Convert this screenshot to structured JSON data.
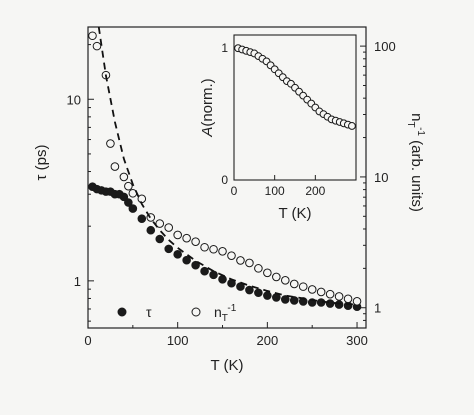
{
  "chart_data": {
    "type": "scatter",
    "xlabel": "T (K)",
    "ylabel_left": "τ (ps)",
    "ylabel_right": "n_T^-1 (arb. units)",
    "xlim": [
      0,
      310
    ],
    "ylim_left": [
      0.55,
      25
    ],
    "ylim_right": [
      0.7,
      140
    ],
    "yscale_left": "log",
    "yscale_right": "log",
    "x_ticks": [
      "0",
      "100",
      "200",
      "300"
    ],
    "x_tick_values": [
      0,
      100,
      200,
      300
    ],
    "y_left_ticks": [
      "1",
      "10"
    ],
    "y_left_tick_values": [
      1,
      10
    ],
    "y_right_ticks": [
      "1",
      "10",
      "100"
    ],
    "y_right_tick_values": [
      1,
      10,
      100
    ],
    "series": [
      {
        "name": "τ",
        "marker": "filled-circle",
        "axis": "left",
        "x": [
          5,
          10,
          15,
          20,
          25,
          30,
          35,
          40,
          45,
          50,
          60,
          70,
          80,
          90,
          100,
          110,
          120,
          130,
          140,
          150,
          160,
          170,
          180,
          190,
          200,
          210,
          220,
          230,
          240,
          250,
          260,
          270,
          280,
          290,
          300
        ],
        "y": [
          3.3,
          3.2,
          3.15,
          3.1,
          3.1,
          3.0,
          3.0,
          2.9,
          2.7,
          2.5,
          2.2,
          1.9,
          1.7,
          1.5,
          1.4,
          1.3,
          1.22,
          1.13,
          1.08,
          1.02,
          0.97,
          0.93,
          0.89,
          0.86,
          0.83,
          0.81,
          0.79,
          0.78,
          0.77,
          0.76,
          0.76,
          0.75,
          0.74,
          0.73,
          0.72
        ]
      },
      {
        "name": "n_T^-1",
        "marker": "open-circle",
        "axis": "right",
        "x": [
          5,
          10,
          20,
          25,
          30,
          40,
          45,
          50,
          60,
          70,
          80,
          90,
          100,
          110,
          120,
          130,
          140,
          150,
          160,
          170,
          180,
          190,
          200,
          210,
          220,
          230,
          240,
          250,
          260,
          270,
          280,
          290,
          300
        ],
        "y": [
          120,
          100,
          60,
          18,
          12,
          10,
          8.5,
          7.5,
          6.8,
          4.9,
          4.4,
          4.1,
          3.6,
          3.4,
          3.2,
          2.9,
          2.8,
          2.7,
          2.5,
          2.3,
          2.2,
          2.0,
          1.85,
          1.72,
          1.62,
          1.52,
          1.45,
          1.38,
          1.32,
          1.27,
          1.22,
          1.17,
          1.12
        ]
      },
      {
        "name": "fit",
        "line": "dashed",
        "axis": "left",
        "x": [
          12,
          20,
          30,
          40,
          50,
          60,
          70,
          80,
          90,
          100,
          120,
          140,
          160,
          180,
          200,
          220,
          240,
          260,
          280,
          300
        ],
        "y": [
          25,
          13.5,
          7.5,
          4.7,
          3.4,
          2.65,
          2.2,
          1.9,
          1.68,
          1.52,
          1.29,
          1.13,
          1.02,
          0.94,
          0.88,
          0.83,
          0.8,
          0.77,
          0.75,
          0.74
        ]
      }
    ],
    "legend": {
      "placement": "bottom-left",
      "items": [
        {
          "label": "τ",
          "marker": "filled-circle"
        },
        {
          "label": "n_T^-1",
          "marker": "open-circle"
        }
      ]
    },
    "inset": {
      "type": "scatter",
      "xlabel": "T (K)",
      "ylabel": "A(norm.)",
      "xlim": [
        0,
        300
      ],
      "ylim": [
        0,
        1.1
      ],
      "x_ticks": [
        "0",
        "100",
        "200"
      ],
      "x_tick_values": [
        0,
        100,
        200
      ],
      "y_ticks": [
        "0",
        "1"
      ],
      "y_tick_values": [
        0,
        1
      ],
      "series": [
        {
          "name": "A",
          "marker": "open-circle",
          "x": [
            10,
            20,
            30,
            40,
            50,
            60,
            70,
            80,
            90,
            100,
            110,
            120,
            130,
            140,
            150,
            160,
            170,
            180,
            190,
            200,
            210,
            220,
            230,
            240,
            250,
            260,
            270,
            280,
            290
          ],
          "y": [
            1.0,
            0.99,
            0.98,
            0.97,
            0.96,
            0.94,
            0.92,
            0.9,
            0.87,
            0.84,
            0.81,
            0.78,
            0.75,
            0.73,
            0.7,
            0.67,
            0.64,
            0.61,
            0.58,
            0.55,
            0.52,
            0.5,
            0.48,
            0.46,
            0.45,
            0.44,
            0.43,
            0.42,
            0.41
          ]
        }
      ]
    }
  }
}
